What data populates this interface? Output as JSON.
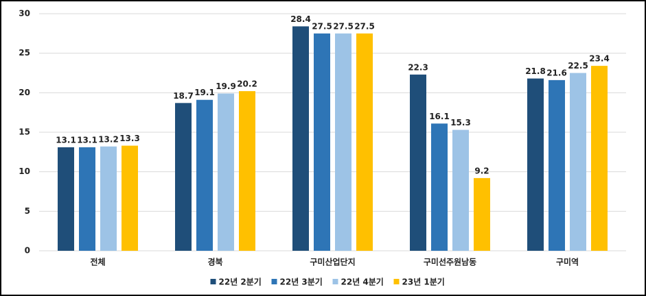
{
  "chart_data": {
    "type": "bar",
    "categories": [
      "전체",
      "경북",
      "구미산업단지",
      "구미선주원남동",
      "구미역"
    ],
    "series": [
      {
        "name": "22년 2분기",
        "color": "#1f4e79",
        "values": [
          13.1,
          18.7,
          28.4,
          22.3,
          21.8
        ]
      },
      {
        "name": "22년 3분기",
        "color": "#2e75b6",
        "values": [
          13.1,
          19.1,
          27.5,
          16.1,
          21.6
        ]
      },
      {
        "name": "22년 4분기",
        "color": "#9dc3e6",
        "values": [
          13.2,
          19.9,
          27.5,
          15.3,
          22.5
        ]
      },
      {
        "name": "23년 1분기",
        "color": "#ffc000",
        "values": [
          13.3,
          20.2,
          27.5,
          9.2,
          23.4
        ]
      }
    ],
    "ylim": [
      0,
      30
    ],
    "yticks": [
      0,
      5,
      10,
      15,
      20,
      25,
      30
    ],
    "grid": true,
    "legend": "bottom"
  }
}
